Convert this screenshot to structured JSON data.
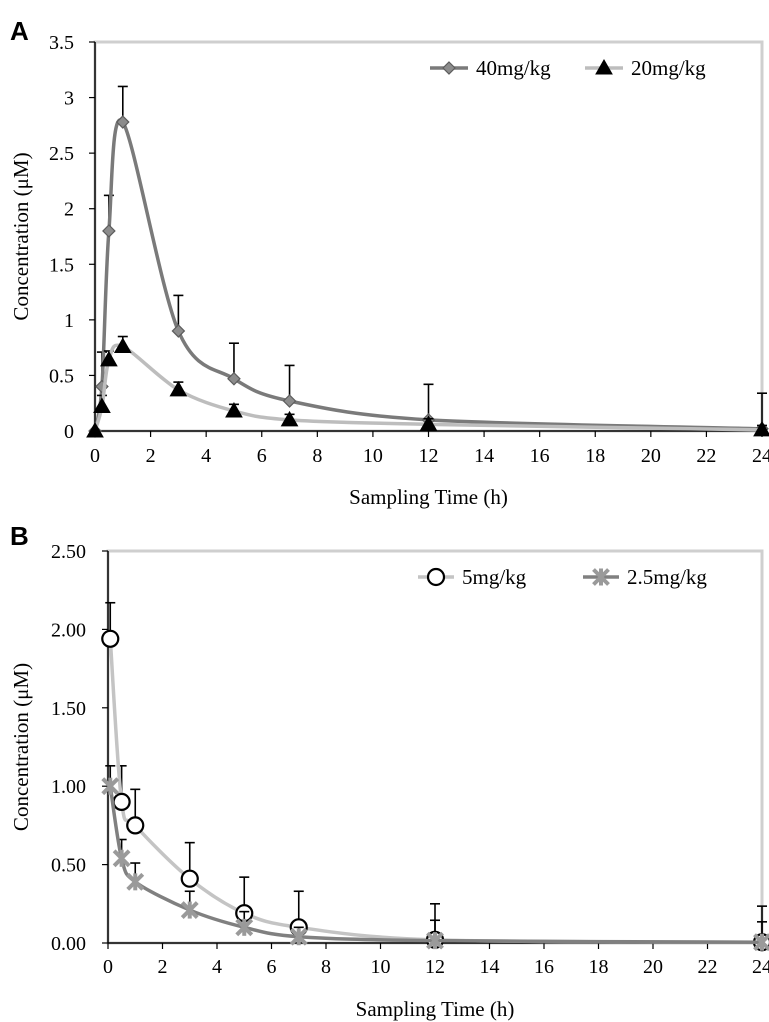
{
  "chart_data": [
    {
      "panel": "A",
      "type": "line",
      "xlabel": "Sampling Time (h)",
      "ylabel": "Concentration (μM)",
      "xlim": [
        0,
        24
      ],
      "ylim": [
        0,
        3.5
      ],
      "xticks": [
        0,
        2,
        4,
        6,
        8,
        10,
        12,
        14,
        16,
        18,
        20,
        22,
        24
      ],
      "xtick_labels": [
        "0",
        "2",
        "4",
        "6",
        "8",
        "10",
        "12",
        "14",
        "16",
        "18",
        "20",
        "22",
        "24"
      ],
      "yticks": [
        0,
        0.5,
        1,
        1.5,
        2,
        2.5,
        3,
        3.5
      ],
      "ytick_labels": [
        "0",
        "0.5",
        "1",
        "1.5",
        "2",
        "2.5",
        "3",
        "3.5"
      ],
      "grid": false,
      "legend_position": "top-right",
      "series": [
        {
          "name": "40mg/kg",
          "color": "#7a7a7a",
          "marker": "diamond",
          "x": [
            0,
            0.25,
            0.5,
            1,
            3,
            5,
            7,
            12,
            24
          ],
          "y": [
            0,
            0.4,
            1.8,
            2.78,
            0.9,
            0.47,
            0.27,
            0.1,
            0.02
          ],
          "error": [
            0,
            0.31,
            0.32,
            0.32,
            0.32,
            0.32,
            0.32,
            0.32,
            0.32
          ]
        },
        {
          "name": "20mg/kg",
          "color": "#bdbdbd",
          "marker": "triangle",
          "x": [
            0,
            0.25,
            0.5,
            1,
            3,
            5,
            7,
            12,
            24
          ],
          "y": [
            0,
            0.22,
            0.64,
            0.76,
            0.37,
            0.18,
            0.1,
            0.06,
            0.01
          ],
          "error": [
            0,
            0.1,
            0.08,
            0.09,
            0.07,
            0.06,
            0.05,
            0.05,
            0.04
          ]
        }
      ]
    },
    {
      "panel": "B",
      "type": "line",
      "xlabel": "Sampling Time (h)",
      "ylabel": "Concentration (μM)",
      "xlim": [
        0,
        24
      ],
      "ylim": [
        0,
        2.5
      ],
      "xticks": [
        0,
        2,
        4,
        6,
        8,
        10,
        12,
        14,
        16,
        18,
        20,
        22,
        24
      ],
      "xtick_labels": [
        "0",
        "2",
        "4",
        "6",
        "8",
        "10",
        "12",
        "14",
        "16",
        "18",
        "20",
        "22",
        "24"
      ],
      "yticks": [
        0,
        0.5,
        1,
        1.5,
        2,
        2.5
      ],
      "ytick_labels": [
        "0.00",
        "0.50",
        "1.00",
        "1.50",
        "2.00",
        "2.50"
      ],
      "grid": false,
      "legend_position": "top-right",
      "series": [
        {
          "name": "5mg/kg",
          "color": "#c4c4c4",
          "marker": "circle",
          "x": [
            0.083,
            0.5,
            1,
            3,
            5,
            7,
            12,
            24
          ],
          "y": [
            1.94,
            0.9,
            0.75,
            0.41,
            0.19,
            0.1,
            0.02,
            0.005
          ],
          "error": [
            0.23,
            0.23,
            0.23,
            0.23,
            0.23,
            0.23,
            0.23,
            0.23
          ]
        },
        {
          "name": "2.5mg/kg",
          "color": "#808080",
          "marker": "star",
          "x": [
            0.083,
            0.5,
            1,
            3,
            5,
            7,
            12,
            24
          ],
          "y": [
            1.0,
            0.54,
            0.39,
            0.21,
            0.1,
            0.04,
            0.015,
            0.005
          ],
          "error": [
            0.13,
            0.12,
            0.12,
            0.12,
            0.1,
            0.06,
            0.13,
            0.13
          ]
        }
      ]
    }
  ]
}
